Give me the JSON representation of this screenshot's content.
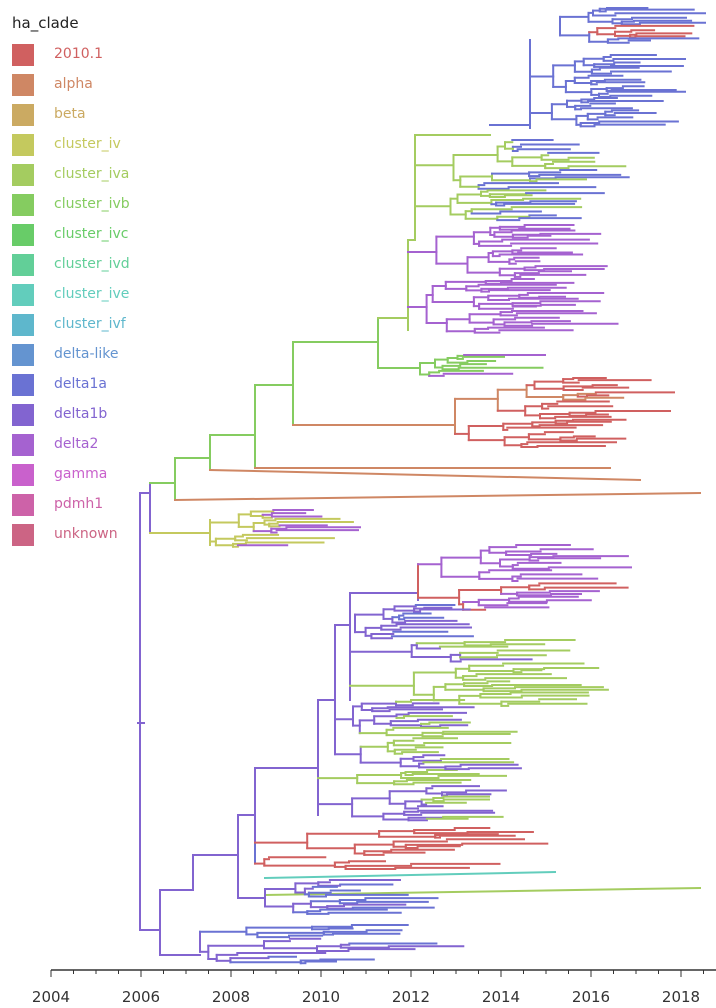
{
  "chart_data": {
    "type": "phylogenetic-tree",
    "legend_title": "ha_clade",
    "legend_placement": "top-left",
    "legend": [
      {
        "name": "2010.1",
        "color": "#d06060"
      },
      {
        "name": "alpha",
        "color": "#cf8764"
      },
      {
        "name": "beta",
        "color": "#cbaa62"
      },
      {
        "name": "cluster_iv",
        "color": "#c4c95e"
      },
      {
        "name": "cluster_iva",
        "color": "#a4cc60"
      },
      {
        "name": "cluster_ivb",
        "color": "#85cc60"
      },
      {
        "name": "cluster_ivc",
        "color": "#68cc68"
      },
      {
        "name": "cluster_ivd",
        "color": "#62cf98"
      },
      {
        "name": "cluster_ive",
        "color": "#62cdbc"
      },
      {
        "name": "cluster_ivf",
        "color": "#5eb7cc"
      },
      {
        "name": "delta-like",
        "color": "#6494d0"
      },
      {
        "name": "delta1a",
        "color": "#6a72d3"
      },
      {
        "name": "delta1b",
        "color": "#8264d0"
      },
      {
        "name": "delta2",
        "color": "#a562d0"
      },
      {
        "name": "gamma",
        "color": "#c961cc"
      },
      {
        "name": "pdmh1",
        "color": "#cd62a8"
      },
      {
        "name": "unknown",
        "color": "#cc6484"
      }
    ],
    "x_axis": {
      "ticks": [
        "2004",
        "2006",
        "2008",
        "2010",
        "2012",
        "2014",
        "2016",
        "2018"
      ],
      "range": [
        2004,
        2018.6
      ]
    },
    "grid": false
  }
}
